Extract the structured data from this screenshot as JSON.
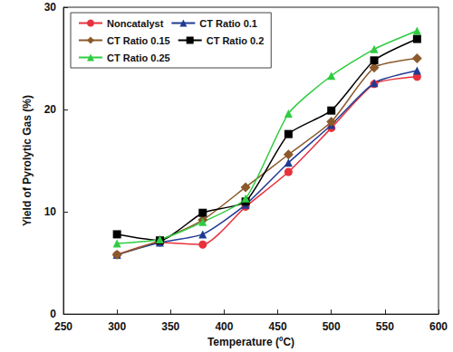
{
  "chart_data": {
    "type": "line",
    "x_label": "Temperature (ºC)",
    "y_label": "Yield of Pyrolytic Gas (%)",
    "x": [
      300,
      340,
      380,
      420,
      460,
      500,
      540,
      580
    ],
    "xlim": [
      250,
      600
    ],
    "xticks": [
      250,
      300,
      350,
      400,
      450,
      500,
      550,
      600
    ],
    "ylim": [
      0,
      30
    ],
    "yticks": [
      0,
      10,
      20,
      30
    ],
    "grid": false,
    "legend": "upper left",
    "series": [
      {
        "name": "Noncatalyst",
        "color": "#e8313c",
        "marker": "circle",
        "values": [
          5.8,
          7.0,
          6.8,
          10.5,
          13.9,
          18.2,
          22.5,
          23.2
        ]
      },
      {
        "name": "CT Ratio 0.1",
        "color": "#1f3a93",
        "marker": "triangle",
        "values": [
          5.8,
          7.0,
          7.8,
          10.7,
          14.8,
          18.5,
          22.6,
          23.8
        ]
      },
      {
        "name": "CT Ratio 0.15",
        "color": "#8b5a2b",
        "marker": "diamond",
        "values": [
          5.8,
          7.2,
          9.2,
          12.4,
          15.6,
          18.8,
          24.1,
          25.0
        ]
      },
      {
        "name": "CT Ratio 0.2",
        "color": "#000000",
        "marker": "square",
        "values": [
          7.8,
          7.2,
          9.9,
          11.0,
          17.6,
          19.9,
          24.8,
          26.9
        ]
      },
      {
        "name": "CT Ratio 0.25",
        "color": "#2ecc40",
        "marker": "triangle",
        "values": [
          6.9,
          7.3,
          9.0,
          11.3,
          19.6,
          23.3,
          25.9,
          27.7
        ]
      }
    ]
  }
}
